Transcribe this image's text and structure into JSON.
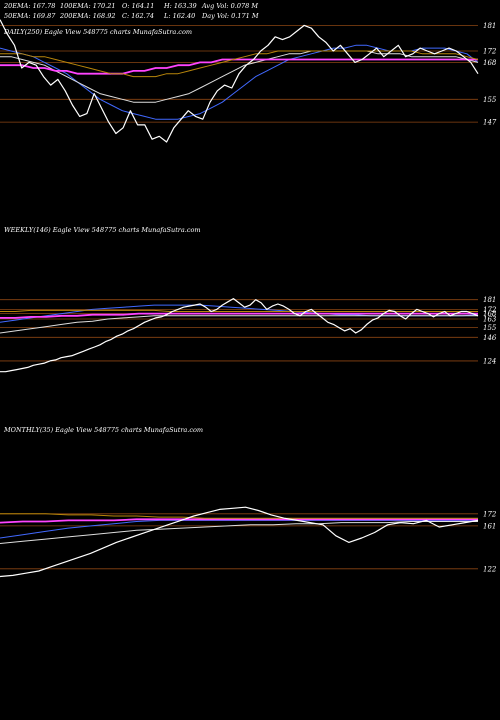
{
  "header": {
    "line1": [
      "20EMA: 167.78",
      "100EMA: 170.21",
      "O: 164.11",
      "H: 163.39",
      "Avg Vol: 0.078  M"
    ],
    "line2": [
      "50EMA: 169.87",
      "200EMA: 168.92",
      "C: 162.74",
      "L: 162.40",
      "Day Vol: 0.171 M"
    ]
  },
  "chart_data": [
    {
      "type": "line",
      "panel": "daily",
      "title": "DAILY(250) Eagle  View  548775 charts MunafaSutra.com",
      "y_ticks": [
        181,
        172,
        168,
        155,
        147
      ],
      "ylim": [
        140,
        185
      ],
      "series": [
        {
          "color": "#ffffff",
          "y": [
            183,
            178,
            174,
            166,
            168,
            167,
            163,
            160,
            162,
            158,
            153,
            149,
            150,
            157,
            152,
            147,
            143,
            145,
            151,
            146,
            146,
            141,
            142,
            140,
            145,
            148,
            151,
            149,
            148,
            154,
            158,
            160,
            159,
            164,
            167,
            169,
            172,
            174,
            177,
            176,
            177,
            179,
            181,
            180,
            177,
            175,
            172,
            174,
            171,
            168,
            169,
            171,
            173,
            170,
            172,
            174,
            170,
            171,
            173,
            172,
            171,
            172,
            173,
            172,
            170,
            168,
            164
          ]
        },
        {
          "color": "#4169ff",
          "y": [
            173,
            172,
            171,
            170,
            168,
            166,
            164,
            161,
            158,
            155,
            153,
            151,
            150,
            149,
            148,
            148,
            148,
            149,
            150,
            152,
            154,
            157,
            160,
            163,
            165,
            167,
            169,
            170,
            171,
            172,
            173,
            173,
            174,
            174,
            173,
            172,
            172,
            172,
            173,
            173,
            173,
            172,
            171,
            168
          ]
        },
        {
          "color": "#dddddd",
          "y": [
            170,
            170,
            169,
            168,
            167,
            165,
            163,
            161,
            159,
            157,
            156,
            155,
            154,
            154,
            154,
            155,
            156,
            157,
            159,
            161,
            163,
            165,
            167,
            168,
            169,
            170,
            171,
            171,
            172,
            172,
            172,
            172,
            172,
            172,
            171,
            171,
            171,
            170,
            170,
            170,
            170,
            170,
            169,
            168
          ]
        },
        {
          "color": "#ff44ff",
          "y": [
            167,
            167,
            167,
            166,
            166,
            165,
            165,
            164,
            164,
            164,
            164,
            164,
            165,
            165,
            166,
            166,
            167,
            167,
            168,
            168,
            169,
            169,
            169,
            169,
            169,
            169,
            169,
            169,
            169,
            169,
            169,
            169,
            169,
            169,
            169,
            169,
            169,
            169,
            169,
            169,
            169,
            169,
            169,
            169
          ]
        },
        {
          "color": "#b8860b",
          "y": [
            171,
            171,
            171,
            170,
            170,
            169,
            168,
            167,
            166,
            165,
            164,
            164,
            163,
            163,
            163,
            164,
            164,
            165,
            166,
            167,
            168,
            169,
            170,
            171,
            171,
            172,
            172,
            172,
            172,
            172,
            172,
            172,
            172,
            172,
            172,
            172,
            172,
            172,
            171,
            171,
            171,
            171,
            170,
            169
          ]
        }
      ]
    },
    {
      "type": "line",
      "panel": "weekly",
      "title": "WEEKLY(146) Eagle  View  548775 charts MunafaSutra.com",
      "y_ticks": [
        181,
        172,
        168,
        163,
        155,
        146,
        124
      ],
      "ylim": [
        110,
        190
      ],
      "series": [
        {
          "color": "#ffffff",
          "y": [
            114,
            114,
            115,
            116,
            117,
            118,
            120,
            121,
            122,
            124,
            125,
            127,
            128,
            129,
            131,
            133,
            135,
            137,
            139,
            142,
            144,
            147,
            149,
            152,
            154,
            157,
            160,
            162,
            164,
            165,
            167,
            170,
            172,
            174,
            175,
            176,
            177,
            174,
            170,
            172,
            176,
            179,
            182,
            178,
            174,
            176,
            181,
            178,
            172,
            175,
            177,
            175,
            172,
            168,
            166,
            170,
            172,
            168,
            164,
            160,
            158,
            155,
            152,
            154,
            150,
            153,
            158,
            162,
            164,
            168,
            171,
            170,
            166,
            163,
            168,
            172,
            170,
            168,
            165,
            168,
            170,
            166,
            168,
            170,
            170,
            168,
            166
          ]
        },
        {
          "color": "#4169ff",
          "y": [
            160,
            162,
            164,
            166,
            168,
            170,
            172,
            173,
            174,
            175,
            176,
            176,
            176,
            176,
            175,
            174,
            173,
            172,
            171,
            170,
            169,
            168,
            167,
            167,
            166,
            166,
            166,
            166,
            166,
            166,
            166,
            167
          ]
        },
        {
          "color": "#ff44ff",
          "y": [
            164,
            164,
            165,
            165,
            166,
            166,
            167,
            167,
            167,
            168,
            168,
            168,
            168,
            168,
            168,
            168,
            168,
            168,
            168,
            168,
            168,
            168,
            168,
            168,
            168,
            168,
            168,
            168,
            168,
            168,
            168,
            168
          ]
        },
        {
          "color": "#dddddd",
          "y": [
            150,
            152,
            154,
            156,
            158,
            160,
            161,
            163,
            164,
            165,
            166,
            166,
            166,
            166,
            166,
            166,
            166,
            166,
            166,
            166,
            166,
            166,
            166,
            166,
            166,
            166,
            166,
            166,
            166,
            166,
            166,
            166
          ]
        },
        {
          "color": "#b8860b",
          "y": [
            170,
            170,
            171,
            171,
            171,
            171,
            171,
            171,
            171,
            171,
            171,
            170,
            170,
            170,
            170,
            170,
            170,
            170,
            170,
            170,
            170,
            170,
            170,
            170,
            170,
            170,
            170,
            170,
            170,
            170,
            170,
            170
          ]
        }
      ]
    },
    {
      "type": "line",
      "panel": "monthly",
      "title": "MONTHLY(35) Eagle  View  548775 charts MunafaSutra.com",
      "y_ticks": [
        172,
        161,
        122
      ],
      "ylim": [
        110,
        190
      ],
      "series": [
        {
          "color": "#ffffff",
          "y": [
            115,
            116,
            118,
            120,
            124,
            128,
            132,
            136,
            141,
            146,
            150,
            154,
            158,
            162,
            166,
            170,
            173,
            176,
            177,
            178,
            175,
            171,
            168,
            166,
            164,
            162,
            152,
            146,
            150,
            155,
            162,
            164,
            163,
            166,
            160,
            162,
            164,
            166
          ]
        },
        {
          "color": "#4169ff",
          "y": [
            150,
            153,
            156,
            159,
            161,
            163,
            165,
            166,
            166,
            166,
            166,
            166,
            166,
            166,
            166,
            166,
            166,
            166,
            166,
            166,
            166,
            166
          ]
        },
        {
          "color": "#ff44ff",
          "y": [
            164,
            165,
            165,
            166,
            166,
            166,
            167,
            167,
            167,
            167,
            167,
            167,
            167,
            167,
            167,
            167,
            167,
            167,
            167,
            167,
            167,
            167
          ]
        },
        {
          "color": "#dddddd",
          "y": [
            145,
            147,
            149,
            151,
            153,
            155,
            157,
            158,
            159,
            160,
            161,
            162,
            162,
            163,
            163,
            164,
            164,
            164,
            165,
            165,
            165,
            165
          ]
        },
        {
          "color": "#b8860b",
          "y": [
            172,
            172,
            172,
            171,
            171,
            170,
            170,
            169,
            169,
            168,
            168,
            168,
            168,
            168,
            168,
            168,
            168,
            168,
            168,
            168,
            168,
            168
          ]
        }
      ]
    }
  ]
}
